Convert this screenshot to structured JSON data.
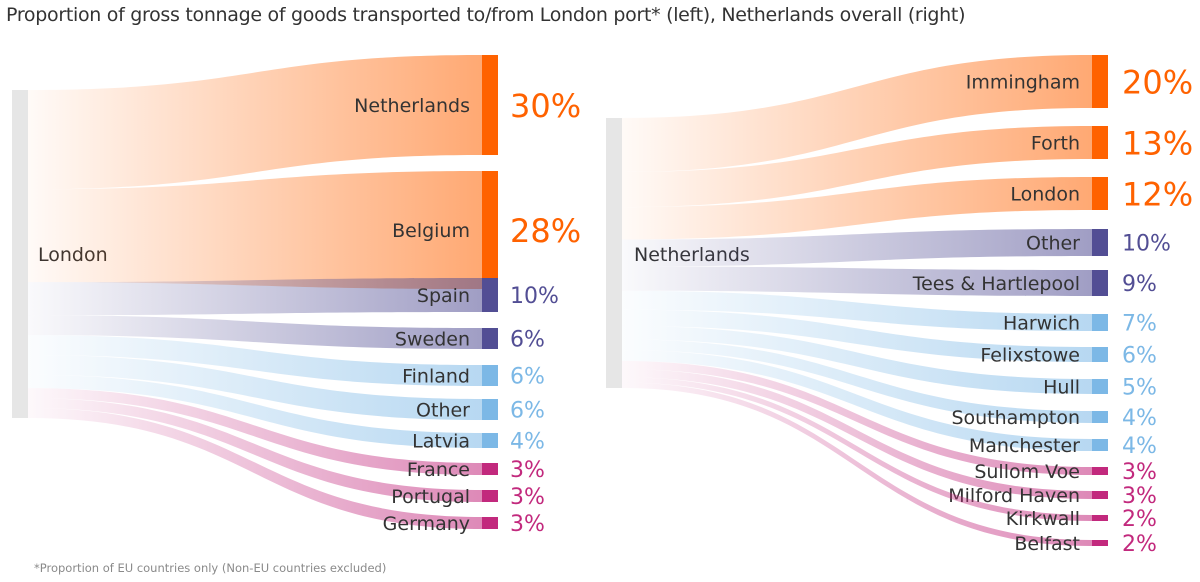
{
  "title": "Proportion of gross tonnage of goods transported to/from London port* (left), Netherlands overall (right)",
  "footnote": "*Proportion of EU countries only (Non-EU countries excluded)",
  "colors": {
    "orange": "#ff6200",
    "purple": "#524e94",
    "blue": "#7cb8e6",
    "pink": "#c2297d",
    "source": "#e6e6e6"
  },
  "chart_data": [
    {
      "type": "sankey",
      "source": "London",
      "targets": [
        {
          "label": "Netherlands",
          "value": 30,
          "value_label": "30%",
          "group": "orange"
        },
        {
          "label": "Belgium",
          "value": 28,
          "value_label": "28%",
          "group": "orange"
        },
        {
          "label": "Spain",
          "value": 10,
          "value_label": "10%",
          "group": "purple"
        },
        {
          "label": "Sweden",
          "value": 6,
          "value_label": "6%",
          "group": "purple"
        },
        {
          "label": "Finland",
          "value": 6,
          "value_label": "6%",
          "group": "blue"
        },
        {
          "label": "Other",
          "value": 6,
          "value_label": "6%",
          "group": "blue"
        },
        {
          "label": "Latvia",
          "value": 4,
          "value_label": "4%",
          "group": "blue"
        },
        {
          "label": "France",
          "value": 3,
          "value_label": "3%",
          "group": "pink"
        },
        {
          "label": "Portugal",
          "value": 3,
          "value_label": "3%",
          "group": "pink"
        },
        {
          "label": "Germany",
          "value": 3,
          "value_label": "3%",
          "group": "pink"
        }
      ]
    },
    {
      "type": "sankey",
      "source": "Netherlands",
      "targets": [
        {
          "label": "Immingham",
          "value": 20,
          "value_label": "20%",
          "group": "orange"
        },
        {
          "label": "Forth",
          "value": 13,
          "value_label": "13%",
          "group": "orange"
        },
        {
          "label": "London",
          "value": 12,
          "value_label": "12%",
          "group": "orange"
        },
        {
          "label": "Other",
          "value": 10,
          "value_label": "10%",
          "group": "purple"
        },
        {
          "label": "Tees & Hartlepool",
          "value": 9,
          "value_label": "9%",
          "group": "purple"
        },
        {
          "label": "Harwich",
          "value": 7,
          "value_label": "7%",
          "group": "blue"
        },
        {
          "label": "Felixstowe",
          "value": 6,
          "value_label": "6%",
          "group": "blue"
        },
        {
          "label": "Hull",
          "value": 5,
          "value_label": "5%",
          "group": "blue"
        },
        {
          "label": "Southampton",
          "value": 4,
          "value_label": "4%",
          "group": "blue"
        },
        {
          "label": "Manchester",
          "value": 4,
          "value_label": "4%",
          "group": "blue"
        },
        {
          "label": "Sullom Voe",
          "value": 3,
          "value_label": "3%",
          "group": "pink"
        },
        {
          "label": "Milford Haven",
          "value": 3,
          "value_label": "3%",
          "group": "pink"
        },
        {
          "label": "Kirkwall",
          "value": 2,
          "value_label": "2%",
          "group": "pink"
        },
        {
          "label": "Belfast",
          "value": 2,
          "value_label": "2%",
          "group": "pink"
        }
      ]
    }
  ]
}
